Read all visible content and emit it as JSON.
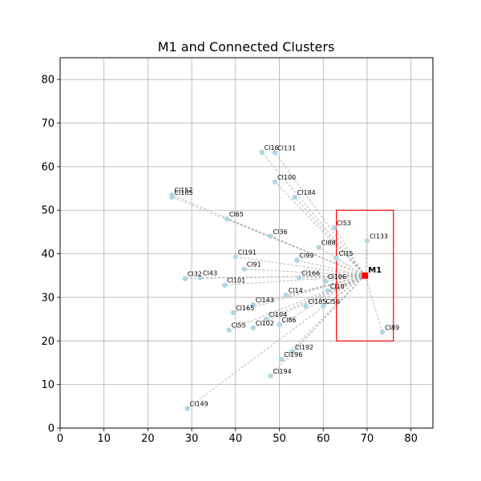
{
  "chart_data": {
    "type": "scatter",
    "title": "M1 and Connected Clusters",
    "xlabel": "",
    "ylabel": "",
    "xlim": [
      0,
      85
    ],
    "ylim": [
      0,
      85
    ],
    "xticks": [
      0,
      10,
      20,
      30,
      40,
      50,
      60,
      70,
      80
    ],
    "yticks": [
      0,
      10,
      20,
      30,
      40,
      50,
      60,
      70,
      80
    ],
    "grid": true,
    "point_color": "#add8e6",
    "edge_color": "#aaaaaa",
    "box_color": "#ff0000",
    "hub": {
      "name": "M1",
      "x": 69.5,
      "y": 35.0,
      "color": "#ff0000"
    },
    "highlight_box": {
      "x0": 63.0,
      "x1": 76.0,
      "y0": 20.0,
      "y1": 50.0
    },
    "points": [
      {
        "name": "Cl16",
        "x": 46.0,
        "y": 63.3
      },
      {
        "name": "Cl131",
        "x": 49.0,
        "y": 63.2
      },
      {
        "name": "Cl100",
        "x": 49.0,
        "y": 56.5
      },
      {
        "name": "Cl184",
        "x": 53.5,
        "y": 53.0
      },
      {
        "name": "Cl152",
        "x": 25.5,
        "y": 53.5
      },
      {
        "name": "Cl105",
        "x": 25.5,
        "y": 53.0
      },
      {
        "name": "Cl65",
        "x": 38.0,
        "y": 48.0
      },
      {
        "name": "Cl53",
        "x": 62.5,
        "y": 46.0
      },
      {
        "name": "Cl36",
        "x": 48.0,
        "y": 44.0
      },
      {
        "name": "Cl133",
        "x": 70.0,
        "y": 43.0
      },
      {
        "name": "Cl88",
        "x": 59.0,
        "y": 41.5
      },
      {
        "name": "Cl191",
        "x": 40.0,
        "y": 39.3
      },
      {
        "name": "Cl15",
        "x": 63.0,
        "y": 39.0
      },
      {
        "name": "Cl99",
        "x": 54.0,
        "y": 38.5
      },
      {
        "name": "Cl91",
        "x": 42.0,
        "y": 36.5
      },
      {
        "name": "Cl166",
        "x": 54.5,
        "y": 34.5
      },
      {
        "name": "Cl106",
        "x": 60.5,
        "y": 33.7
      },
      {
        "name": "Cl32",
        "x": 28.5,
        "y": 34.3
      },
      {
        "name": "Cl43",
        "x": 32.0,
        "y": 34.5
      },
      {
        "name": "Cl101",
        "x": 37.5,
        "y": 32.8
      },
      {
        "name": "Cl10",
        "x": 61.0,
        "y": 31.5
      },
      {
        "name": "Cl14",
        "x": 51.5,
        "y": 30.5
      },
      {
        "name": "Cl56",
        "x": 60.0,
        "y": 28.0
      },
      {
        "name": "Cl185",
        "x": 56.0,
        "y": 28.0
      },
      {
        "name": "Cl143",
        "x": 44.0,
        "y": 28.3
      },
      {
        "name": "Cl165",
        "x": 39.5,
        "y": 26.5
      },
      {
        "name": "Cl104",
        "x": 47.0,
        "y": 25.0
      },
      {
        "name": "Cl86",
        "x": 50.0,
        "y": 23.7
      },
      {
        "name": "Cl102",
        "x": 44.0,
        "y": 23.0
      },
      {
        "name": "Cl55",
        "x": 38.5,
        "y": 22.5
      },
      {
        "name": "Cl89",
        "x": 73.5,
        "y": 22.0
      },
      {
        "name": "Cl192",
        "x": 53.0,
        "y": 17.5
      },
      {
        "name": "Cl196",
        "x": 50.5,
        "y": 15.8
      },
      {
        "name": "Cl194",
        "x": 48.0,
        "y": 12.0
      },
      {
        "name": "Cl149",
        "x": 29.0,
        "y": 4.5
      }
    ]
  }
}
